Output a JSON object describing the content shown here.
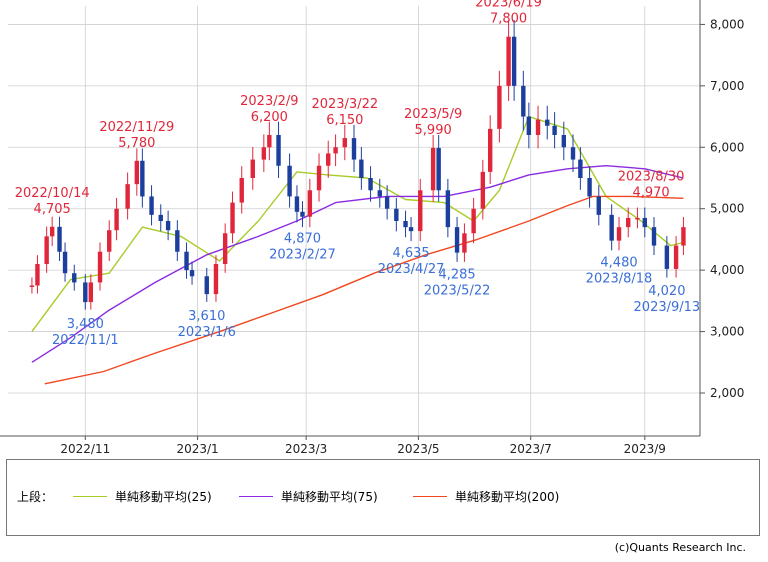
{
  "chart_data": {
    "type": "candlestick",
    "x_ticks": [
      "2022/11",
      "2023/1",
      "2023/3",
      "2023/5",
      "2023/7",
      "2023/9"
    ],
    "y_ticks": [
      "2,000",
      "3,000",
      "4,000",
      "5,000",
      "6,000",
      "7,000",
      "8,000"
    ],
    "ylim": [
      1300,
      8300
    ],
    "y_axis_side": "right",
    "grid": true,
    "up_color": "#e0263a",
    "down_color": "#1c3f9e",
    "price_series": [
      {
        "date": "2022-10-03",
        "close": 3750
      },
      {
        "date": "2022-10-06",
        "close": 4100
      },
      {
        "date": "2022-10-11",
        "close": 4550
      },
      {
        "date": "2022-10-14",
        "close": 4705
      },
      {
        "date": "2022-10-18",
        "close": 4300
      },
      {
        "date": "2022-10-21",
        "close": 3950
      },
      {
        "date": "2022-10-26",
        "close": 3800
      },
      {
        "date": "2022-11-01",
        "close": 3480
      },
      {
        "date": "2022-11-04",
        "close": 3800
      },
      {
        "date": "2022-11-09",
        "close": 4300
      },
      {
        "date": "2022-11-14",
        "close": 4650
      },
      {
        "date": "2022-11-18",
        "close": 5000
      },
      {
        "date": "2022-11-24",
        "close": 5400
      },
      {
        "date": "2022-11-29",
        "close": 5780
      },
      {
        "date": "2022-12-02",
        "close": 5200
      },
      {
        "date": "2022-12-07",
        "close": 4900
      },
      {
        "date": "2022-12-12",
        "close": 4800
      },
      {
        "date": "2022-12-16",
        "close": 4650
      },
      {
        "date": "2022-12-21",
        "close": 4300
      },
      {
        "date": "2022-12-26",
        "close": 4000
      },
      {
        "date": "2022-12-29",
        "close": 3900
      },
      {
        "date": "2023-01-06",
        "close": 3610
      },
      {
        "date": "2023-01-11",
        "close": 4100
      },
      {
        "date": "2023-01-16",
        "close": 4600
      },
      {
        "date": "2023-01-20",
        "close": 5100
      },
      {
        "date": "2023-01-25",
        "close": 5500
      },
      {
        "date": "2023-01-31",
        "close": 5800
      },
      {
        "date": "2023-02-06",
        "close": 6000
      },
      {
        "date": "2023-02-09",
        "close": 6200
      },
      {
        "date": "2023-02-14",
        "close": 5700
      },
      {
        "date": "2023-02-20",
        "close": 5200
      },
      {
        "date": "2023-02-24",
        "close": 4950
      },
      {
        "date": "2023-02-27",
        "close": 4870
      },
      {
        "date": "2023-03-03",
        "close": 5300
      },
      {
        "date": "2023-03-08",
        "close": 5700
      },
      {
        "date": "2023-03-13",
        "close": 5900
      },
      {
        "date": "2023-03-17",
        "close": 6000
      },
      {
        "date": "2023-03-22",
        "close": 6150
      },
      {
        "date": "2023-03-27",
        "close": 5800
      },
      {
        "date": "2023-03-31",
        "close": 5500
      },
      {
        "date": "2023-04-05",
        "close": 5300
      },
      {
        "date": "2023-04-10",
        "close": 5200
      },
      {
        "date": "2023-04-14",
        "close": 5000
      },
      {
        "date": "2023-04-19",
        "close": 4800
      },
      {
        "date": "2023-04-24",
        "close": 4700
      },
      {
        "date": "2023-04-27",
        "close": 4635
      },
      {
        "date": "2023-05-02",
        "close": 5300
      },
      {
        "date": "2023-05-09",
        "close": 5990
      },
      {
        "date": "2023-05-12",
        "close": 5300
      },
      {
        "date": "2023-05-17",
        "close": 4700
      },
      {
        "date": "2023-05-22",
        "close": 4285
      },
      {
        "date": "2023-05-26",
        "close": 4600
      },
      {
        "date": "2023-05-31",
        "close": 5000
      },
      {
        "date": "2023-06-05",
        "close": 5600
      },
      {
        "date": "2023-06-09",
        "close": 6300
      },
      {
        "date": "2023-06-14",
        "close": 7000
      },
      {
        "date": "2023-06-19",
        "close": 7800
      },
      {
        "date": "2023-06-22",
        "close": 7000
      },
      {
        "date": "2023-06-27",
        "close": 6500
      },
      {
        "date": "2023-06-30",
        "close": 6200
      },
      {
        "date": "2023-07-05",
        "close": 6450
      },
      {
        "date": "2023-07-10",
        "close": 6350
      },
      {
        "date": "2023-07-14",
        "close": 6200
      },
      {
        "date": "2023-07-19",
        "close": 6000
      },
      {
        "date": "2023-07-24",
        "close": 5800
      },
      {
        "date": "2023-07-28",
        "close": 5500
      },
      {
        "date": "2023-08-02",
        "close": 5200
      },
      {
        "date": "2023-08-07",
        "close": 4900
      },
      {
        "date": "2023-08-14",
        "close": 4480
      },
      {
        "date": "2023-08-18",
        "close": 4700
      },
      {
        "date": "2023-08-23",
        "close": 4850
      },
      {
        "date": "2023-08-28",
        "close": 4850
      },
      {
        "date": "2023-09-01",
        "close": 4700
      },
      {
        "date": "2023-09-06",
        "close": 4400
      },
      {
        "date": "2023-09-13",
        "close": 4020
      },
      {
        "date": "2023-09-18",
        "close": 4400
      },
      {
        "date": "2023-09-22",
        "close": 4700
      }
    ],
    "moving_averages": [
      {
        "name": "単純移動平均(25)",
        "color": "#a8cc2a",
        "points": [
          {
            "date": "2022-10-03",
            "value": 3000
          },
          {
            "date": "2022-10-24",
            "value": 3850
          },
          {
            "date": "2022-11-14",
            "value": 3950
          },
          {
            "date": "2022-12-02",
            "value": 4700
          },
          {
            "date": "2022-12-23",
            "value": 4550
          },
          {
            "date": "2023-01-13",
            "value": 4150
          },
          {
            "date": "2023-02-03",
            "value": 4800
          },
          {
            "date": "2023-02-24",
            "value": 5600
          },
          {
            "date": "2023-03-13",
            "value": 5550
          },
          {
            "date": "2023-04-03",
            "value": 5500
          },
          {
            "date": "2023-04-24",
            "value": 5150
          },
          {
            "date": "2023-05-15",
            "value": 5100
          },
          {
            "date": "2023-05-31",
            "value": 4800
          },
          {
            "date": "2023-06-14",
            "value": 5300
          },
          {
            "date": "2023-06-30",
            "value": 6500
          },
          {
            "date": "2023-07-21",
            "value": 6300
          },
          {
            "date": "2023-08-11",
            "value": 5200
          },
          {
            "date": "2023-08-30",
            "value": 4800
          },
          {
            "date": "2023-09-15",
            "value": 4400
          },
          {
            "date": "2023-09-22",
            "value": 4450
          }
        ]
      },
      {
        "name": "単純移動平均(75)",
        "color": "#8a2be2",
        "points": [
          {
            "date": "2022-10-03",
            "value": 2500
          },
          {
            "date": "2022-10-24",
            "value": 2900
          },
          {
            "date": "2022-11-14",
            "value": 3350
          },
          {
            "date": "2022-12-09",
            "value": 3800
          },
          {
            "date": "2023-01-06",
            "value": 4250
          },
          {
            "date": "2023-02-03",
            "value": 4550
          },
          {
            "date": "2023-02-24",
            "value": 4800
          },
          {
            "date": "2023-03-17",
            "value": 5100
          },
          {
            "date": "2023-04-14",
            "value": 5200
          },
          {
            "date": "2023-05-15",
            "value": 5200
          },
          {
            "date": "2023-06-09",
            "value": 5350
          },
          {
            "date": "2023-06-30",
            "value": 5550
          },
          {
            "date": "2023-07-21",
            "value": 5650
          },
          {
            "date": "2023-08-11",
            "value": 5700
          },
          {
            "date": "2023-09-01",
            "value": 5650
          },
          {
            "date": "2023-09-22",
            "value": 5500
          }
        ]
      },
      {
        "name": "単純移動平均(200)",
        "color": "#f0471f",
        "points": [
          {
            "date": "2022-10-10",
            "value": 2150
          },
          {
            "date": "2022-11-11",
            "value": 2350
          },
          {
            "date": "2022-12-09",
            "value": 2650
          },
          {
            "date": "2023-01-13",
            "value": 3000
          },
          {
            "date": "2023-02-10",
            "value": 3300
          },
          {
            "date": "2023-03-10",
            "value": 3600
          },
          {
            "date": "2023-04-07",
            "value": 3950
          },
          {
            "date": "2023-05-05",
            "value": 4250
          },
          {
            "date": "2023-06-02",
            "value": 4500
          },
          {
            "date": "2023-06-30",
            "value": 4800
          },
          {
            "date": "2023-07-21",
            "value": 5050
          },
          {
            "date": "2023-08-04",
            "value": 5200
          },
          {
            "date": "2023-08-25",
            "value": 5200
          },
          {
            "date": "2023-09-22",
            "value": 5170
          }
        ]
      }
    ],
    "annotations": [
      {
        "kind": "high",
        "date": "2022-10-14",
        "value": 4705,
        "date_label": "2022/10/14",
        "value_label": "4,705"
      },
      {
        "kind": "high",
        "date": "2022-11-29",
        "value": 5780,
        "date_label": "2022/11/29",
        "value_label": "5,780"
      },
      {
        "kind": "high",
        "date": "2023-02-09",
        "value": 6200,
        "date_label": "2023/2/9",
        "value_label": "6,200"
      },
      {
        "kind": "high",
        "date": "2023-03-22",
        "value": 6150,
        "date_label": "2023/3/22",
        "value_label": "6,150"
      },
      {
        "kind": "high",
        "date": "2023-05-09",
        "value": 5990,
        "date_label": "2023/5/9",
        "value_label": "5,990"
      },
      {
        "kind": "high",
        "date": "2023-06-19",
        "value": 7800,
        "date_label": "2023/6/19",
        "value_label": "7,800"
      },
      {
        "kind": "high",
        "date": "2023-08-30",
        "value": 4970,
        "date_label": "2023/8/30",
        "value_label": "4,970"
      },
      {
        "kind": "low",
        "date": "2022-11-01",
        "value": 3480,
        "date_label": "2022/11/1",
        "value_label": "3,480"
      },
      {
        "kind": "low",
        "date": "2023-01-06",
        "value": 3610,
        "date_label": "2023/1/6",
        "value_label": "3,610"
      },
      {
        "kind": "low",
        "date": "2023-02-27",
        "value": 4870,
        "date_label": "2023/2/27",
        "value_label": "4,870"
      },
      {
        "kind": "low",
        "date": "2023-04-27",
        "value": 4635,
        "date_label": "2023/4/27",
        "value_label": "4,635"
      },
      {
        "kind": "low",
        "date": "2023-05-22",
        "value": 4285,
        "date_label": "2023/5/22",
        "value_label": "4,285"
      },
      {
        "kind": "low",
        "date": "2023-08-18",
        "value": 4480,
        "date_label": "2023/8/18",
        "value_label": "4,480"
      },
      {
        "kind": "low",
        "date": "2023-09-13",
        "value": 4020,
        "date_label": "2023/9/13",
        "value_label": "4,020"
      }
    ]
  },
  "legend": {
    "prefix": "上段：",
    "items": [
      {
        "label": "単純移動平均(25)",
        "color": "#a8cc2a"
      },
      {
        "label": "単純移動平均(75)",
        "color": "#8a2be2"
      },
      {
        "label": "単純移動平均(200)",
        "color": "#f0471f"
      }
    ]
  },
  "footer": {
    "copyright": "(c)Quants Research Inc."
  },
  "colors": {
    "high_label": "#e0263a",
    "low_label": "#3a6fd8",
    "grid": "#cfcfcf",
    "axis": "#555555"
  }
}
